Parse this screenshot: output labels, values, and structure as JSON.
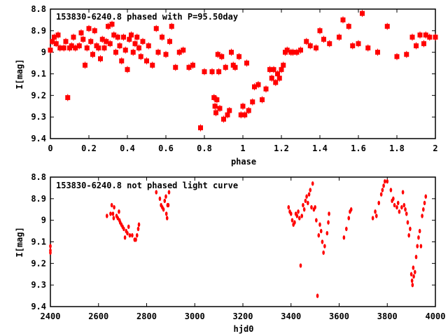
{
  "chart_data": [
    {
      "type": "scatter",
      "title": "153830-6240.8 phased with P=95.50day",
      "xlabel": "phase",
      "ylabel": "I[mag]",
      "xlim": [
        0,
        2
      ],
      "ylim": [
        8.8,
        9.4
      ],
      "y_inverted": true,
      "grid": false,
      "marker_color": "#ff0000",
      "xticks": [
        "0",
        "0.2",
        "0.4",
        "0.6",
        "0.8",
        "1",
        "1.2",
        "1.4",
        "1.6",
        "1.8",
        "2"
      ],
      "xtick_values": [
        0,
        0.2,
        0.4,
        0.6,
        0.8,
        1,
        1.2,
        1.4,
        1.6,
        1.8,
        2
      ],
      "yticks": [
        "8.8",
        "8.9",
        "9",
        "9.1",
        "9.2",
        "9.3",
        "9.4"
      ],
      "ytick_values": [
        8.8,
        8.9,
        9.0,
        9.1,
        9.2,
        9.3,
        9.4
      ],
      "points": [
        [
          0.0,
          8.99
        ],
        [
          0.01,
          8.95
        ],
        [
          0.02,
          8.93
        ],
        [
          0.03,
          8.96
        ],
        [
          0.04,
          8.92
        ],
        [
          0.05,
          8.98
        ],
        [
          0.07,
          8.98
        ],
        [
          0.08,
          8.95
        ],
        [
          0.09,
          9.21
        ],
        [
          0.1,
          8.98
        ],
        [
          0.11,
          8.97
        ],
        [
          0.12,
          8.93
        ],
        [
          0.13,
          8.98
        ],
        [
          0.15,
          8.97
        ],
        [
          0.16,
          8.91
        ],
        [
          0.17,
          8.94
        ],
        [
          0.18,
          9.06
        ],
        [
          0.19,
          8.98
        ],
        [
          0.2,
          8.89
        ],
        [
          0.21,
          8.95
        ],
        [
          0.22,
          9.01
        ],
        [
          0.23,
          8.9
        ],
        [
          0.24,
          8.97
        ],
        [
          0.25,
          8.98
        ],
        [
          0.26,
          9.03
        ],
        [
          0.27,
          8.94
        ],
        [
          0.28,
          8.98
        ],
        [
          0.29,
          8.95
        ],
        [
          0.3,
          8.88
        ],
        [
          0.31,
          8.96
        ],
        [
          0.32,
          8.87
        ],
        [
          0.33,
          8.92
        ],
        [
          0.34,
          9.0
        ],
        [
          0.35,
          8.93
        ],
        [
          0.36,
          8.97
        ],
        [
          0.37,
          9.04
        ],
        [
          0.38,
          8.93
        ],
        [
          0.39,
          8.99
        ],
        [
          0.4,
          9.08
        ],
        [
          0.41,
          8.94
        ],
        [
          0.42,
          8.92
        ],
        [
          0.43,
          9.0
        ],
        [
          0.44,
          8.96
        ],
        [
          0.45,
          8.93
        ],
        [
          0.46,
          8.98
        ],
        [
          0.47,
          9.02
        ],
        [
          0.48,
          8.95
        ],
        [
          0.5,
          9.04
        ],
        [
          0.51,
          8.97
        ],
        [
          0.53,
          9.06
        ],
        [
          0.55,
          8.89
        ],
        [
          0.56,
          9.0
        ],
        [
          0.58,
          8.93
        ],
        [
          0.6,
          9.01
        ],
        [
          0.62,
          8.95
        ],
        [
          0.63,
          8.88
        ],
        [
          0.65,
          9.07
        ],
        [
          0.67,
          9.0
        ],
        [
          0.69,
          8.99
        ],
        [
          0.72,
          9.07
        ],
        [
          0.74,
          9.06
        ],
        [
          0.78,
          9.35
        ],
        [
          0.8,
          9.09
        ],
        [
          0.84,
          9.09
        ],
        [
          0.85,
          9.21
        ],
        [
          0.855,
          9.25
        ],
        [
          0.86,
          9.28
        ],
        [
          0.865,
          9.22
        ],
        [
          0.87,
          9.01
        ],
        [
          0.875,
          9.09
        ],
        [
          0.88,
          9.26
        ],
        [
          0.89,
          9.02
        ],
        [
          0.9,
          9.31
        ],
        [
          0.91,
          9.07
        ],
        [
          0.92,
          9.29
        ],
        [
          0.93,
          9.27
        ],
        [
          0.94,
          9.0
        ],
        [
          0.95,
          9.06
        ],
        [
          0.96,
          9.07
        ],
        [
          0.98,
          9.02
        ],
        [
          0.99,
          9.29
        ],
        [
          1.0,
          9.25
        ],
        [
          1.01,
          9.29
        ],
        [
          1.02,
          9.05
        ],
        [
          1.03,
          9.27
        ],
        [
          1.05,
          9.23
        ],
        [
          1.06,
          9.16
        ],
        [
          1.08,
          9.15
        ],
        [
          1.1,
          9.22
        ],
        [
          1.12,
          9.17
        ],
        [
          1.14,
          9.08
        ],
        [
          1.15,
          9.12
        ],
        [
          1.16,
          9.08
        ],
        [
          1.17,
          9.14
        ],
        [
          1.18,
          9.1
        ],
        [
          1.19,
          9.12
        ],
        [
          1.2,
          9.08
        ],
        [
          1.21,
          9.06
        ],
        [
          1.22,
          9.0
        ],
        [
          1.23,
          8.99
        ],
        [
          1.25,
          9.0
        ],
        [
          1.26,
          9.0
        ],
        [
          1.28,
          9.0
        ],
        [
          1.3,
          8.99
        ],
        [
          1.33,
          8.95
        ],
        [
          1.35,
          8.97
        ],
        [
          1.38,
          8.98
        ],
        [
          1.4,
          8.9
        ],
        [
          1.42,
          8.94
        ],
        [
          1.45,
          8.96
        ],
        [
          1.5,
          8.93
        ],
        [
          1.52,
          8.85
        ],
        [
          1.55,
          8.88
        ],
        [
          1.57,
          8.97
        ],
        [
          1.6,
          8.96
        ],
        [
          1.62,
          8.82
        ],
        [
          1.65,
          8.98
        ],
        [
          1.7,
          9.0
        ],
        [
          1.75,
          8.88
        ],
        [
          1.8,
          9.02
        ],
        [
          1.85,
          9.01
        ],
        [
          1.88,
          8.93
        ],
        [
          1.9,
          8.97
        ],
        [
          1.92,
          8.92
        ],
        [
          1.94,
          8.96
        ],
        [
          1.95,
          8.92
        ],
        [
          1.97,
          8.93
        ],
        [
          2.0,
          8.93
        ]
      ]
    },
    {
      "type": "scatter",
      "title": "153830-6240.8 not phased light curve",
      "xlabel": "hjd0",
      "ylabel": "I[mag]",
      "xlim": [
        2400,
        4000
      ],
      "ylim": [
        8.8,
        9.4
      ],
      "y_inverted": true,
      "grid": false,
      "marker_color": "#ff0000",
      "xticks": [
        "2400",
        "2600",
        "2800",
        "3000",
        "3200",
        "3400",
        "3600",
        "3800",
        "4000"
      ],
      "xtick_values": [
        2400,
        2600,
        2800,
        3000,
        3200,
        3400,
        3600,
        3800,
        4000
      ],
      "yticks": [
        "8.8",
        "8.9",
        "9",
        "9.1",
        "9.2",
        "9.3",
        "9.4"
      ],
      "ytick_values": [
        8.8,
        8.9,
        9.0,
        9.1,
        9.2,
        9.3,
        9.4
      ],
      "points": [
        [
          2400,
          9.12
        ],
        [
          2400,
          9.14
        ],
        [
          2400,
          9.15
        ],
        [
          2635,
          8.98
        ],
        [
          2650,
          8.97
        ],
        [
          2655,
          8.93
        ],
        [
          2660,
          8.97
        ],
        [
          2663,
          8.99
        ],
        [
          2665,
          8.94
        ],
        [
          2675,
          8.98
        ],
        [
          2680,
          8.99
        ],
        [
          2685,
          8.96
        ],
        [
          2687,
          9.0
        ],
        [
          2690,
          9.01
        ],
        [
          2695,
          9.02
        ],
        [
          2700,
          9.03
        ],
        [
          2705,
          9.04
        ],
        [
          2710,
          9.08
        ],
        [
          2715,
          9.05
        ],
        [
          2720,
          9.06
        ],
        [
          2725,
          9.03
        ],
        [
          2730,
          9.07
        ],
        [
          2740,
          9.07
        ],
        [
          2750,
          9.09
        ],
        [
          2755,
          9.09
        ],
        [
          2760,
          9.07
        ],
        [
          2765,
          9.04
        ],
        [
          2768,
          9.02
        ],
        [
          2840,
          8.87
        ],
        [
          2855,
          8.9
        ],
        [
          2860,
          8.93
        ],
        [
          2865,
          8.94
        ],
        [
          2870,
          8.95
        ],
        [
          2875,
          8.91
        ],
        [
          2880,
          8.89
        ],
        [
          2882,
          8.97
        ],
        [
          2885,
          8.99
        ],
        [
          2887,
          8.93
        ],
        [
          2890,
          8.93
        ],
        [
          2893,
          8.87
        ],
        [
          3390,
          8.94
        ],
        [
          3395,
          8.96
        ],
        [
          3400,
          8.97
        ],
        [
          3405,
          9.0
        ],
        [
          3410,
          9.02
        ],
        [
          3415,
          9.01
        ],
        [
          3420,
          8.97
        ],
        [
          3425,
          8.98
        ],
        [
          3430,
          8.96
        ],
        [
          3435,
          8.99
        ],
        [
          3440,
          9.21
        ],
        [
          3445,
          8.98
        ],
        [
          3450,
          8.93
        ],
        [
          3455,
          8.95
        ],
        [
          3460,
          8.91
        ],
        [
          3465,
          8.89
        ],
        [
          3470,
          8.92
        ],
        [
          3475,
          8.88
        ],
        [
          3480,
          8.86
        ],
        [
          3485,
          8.94
        ],
        [
          3490,
          8.83
        ],
        [
          3495,
          8.95
        ],
        [
          3500,
          8.94
        ],
        [
          3505,
          9.0
        ],
        [
          3510,
          9.35
        ],
        [
          3515,
          9.07
        ],
        [
          3520,
          9.02
        ],
        [
          3525,
          9.05
        ],
        [
          3530,
          9.1
        ],
        [
          3535,
          9.15
        ],
        [
          3540,
          9.12
        ],
        [
          3550,
          9.06
        ],
        [
          3555,
          9.01
        ],
        [
          3558,
          8.97
        ],
        [
          3620,
          9.08
        ],
        [
          3630,
          9.04
        ],
        [
          3640,
          8.99
        ],
        [
          3645,
          8.96
        ],
        [
          3650,
          8.95
        ],
        [
          3740,
          8.99
        ],
        [
          3750,
          8.96
        ],
        [
          3755,
          8.98
        ],
        [
          3765,
          8.92
        ],
        [
          3775,
          8.88
        ],
        [
          3780,
          8.86
        ],
        [
          3785,
          8.84
        ],
        [
          3790,
          8.82
        ],
        [
          3800,
          8.82
        ],
        [
          3815,
          8.86
        ],
        [
          3820,
          8.91
        ],
        [
          3825,
          8.9
        ],
        [
          3830,
          8.93
        ],
        [
          3840,
          8.94
        ],
        [
          3845,
          8.92
        ],
        [
          3850,
          8.96
        ],
        [
          3860,
          8.94
        ],
        [
          3865,
          8.87
        ],
        [
          3870,
          8.93
        ],
        [
          3875,
          8.95
        ],
        [
          3880,
          8.97
        ],
        [
          3885,
          9.01
        ],
        [
          3890,
          9.07
        ],
        [
          3895,
          9.04
        ],
        [
          3900,
          9.25
        ],
        [
          3903,
          9.28
        ],
        [
          3905,
          9.3
        ],
        [
          3908,
          9.22
        ],
        [
          3910,
          9.26
        ],
        [
          3915,
          9.24
        ],
        [
          3920,
          9.17
        ],
        [
          3925,
          9.12
        ],
        [
          3930,
          9.08
        ],
        [
          3935,
          9.05
        ],
        [
          3940,
          9.12
        ],
        [
          3945,
          8.98
        ],
        [
          3950,
          8.95
        ],
        [
          3955,
          8.92
        ],
        [
          3960,
          8.89
        ]
      ]
    }
  ]
}
